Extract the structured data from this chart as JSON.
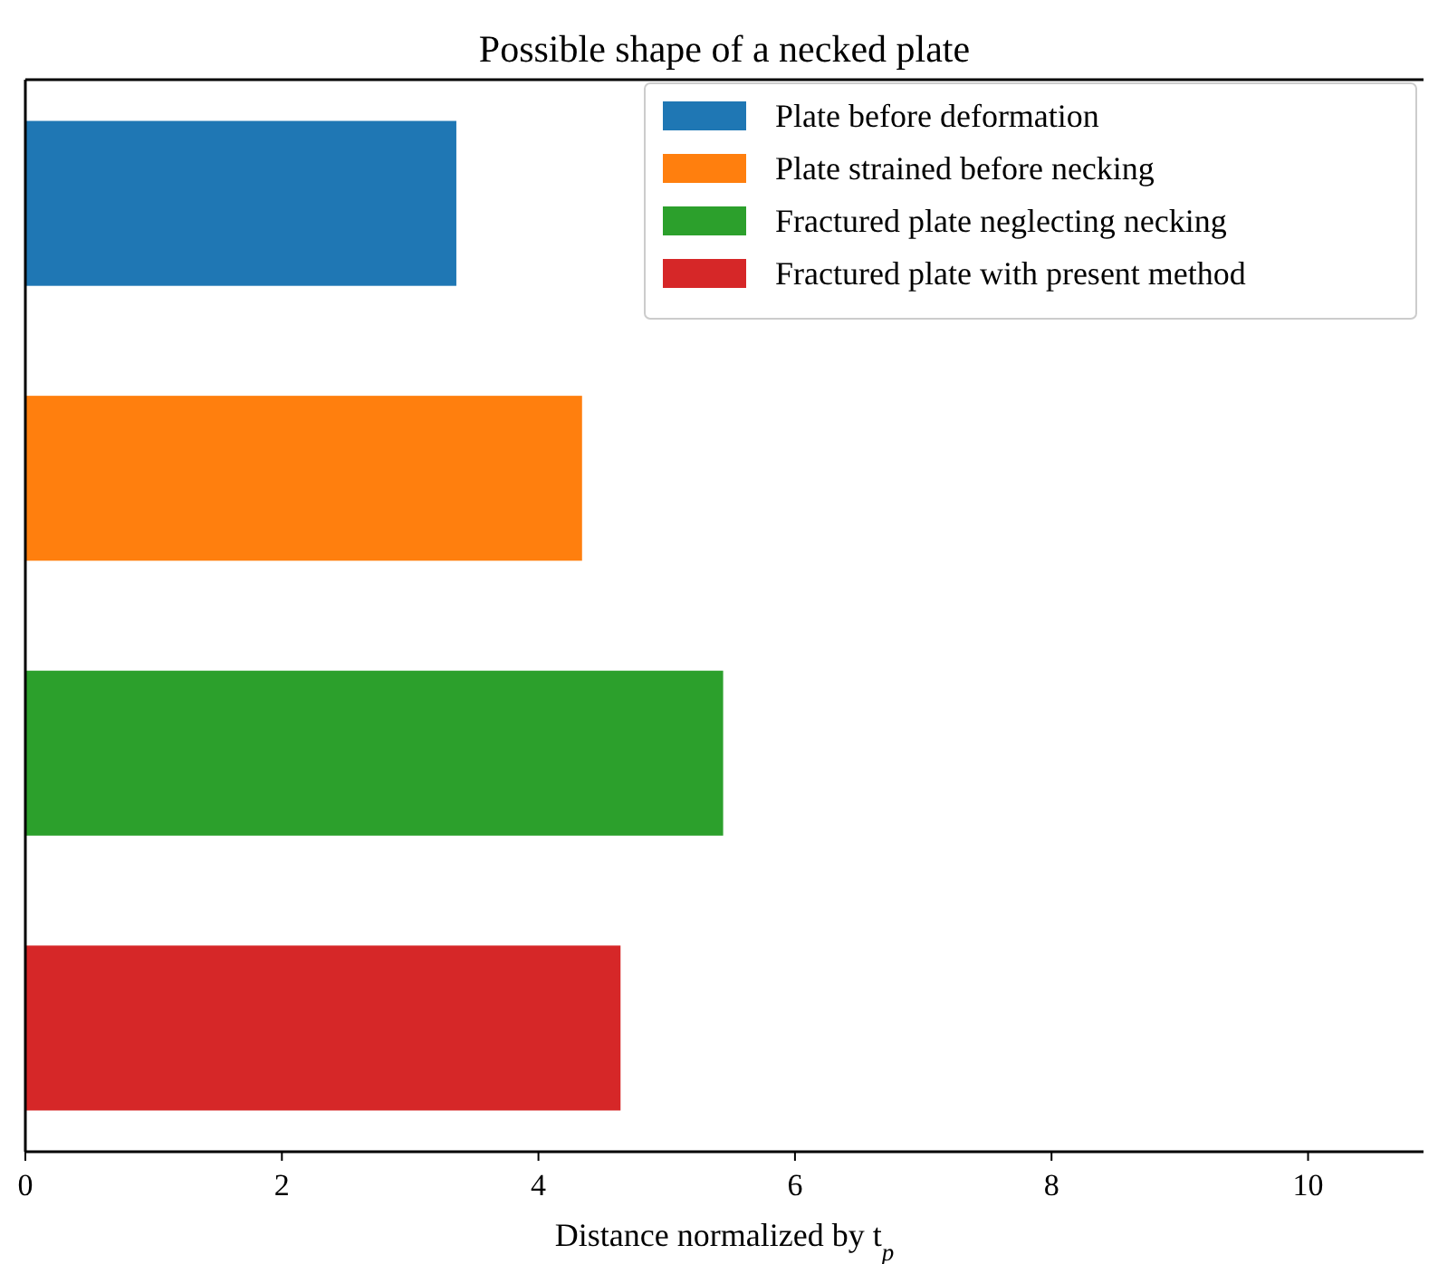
{
  "chart_data": {
    "type": "bar",
    "orientation": "horizontal",
    "title": "Possible shape of a necked plate",
    "xlabel": "Distance normalized by t$_{p}$",
    "categories": [
      null,
      null,
      null,
      null
    ],
    "xlim": [
      0,
      10.9
    ],
    "xticks": [
      0,
      2,
      4,
      6,
      8,
      10
    ],
    "legend": "top right",
    "grid": false,
    "series": [
      {
        "name": "Plate before deformation",
        "color": "#1f77b4",
        "values": [
          3.36,
          null,
          null,
          null
        ]
      },
      {
        "name": "Plate strained before necking",
        "color": "#ff7f0e",
        "values": [
          null,
          4.34,
          null,
          null
        ]
      },
      {
        "name": "Fractured plate neglecting necking",
        "color": "#2ca02c",
        "values": [
          null,
          null,
          5.44,
          null
        ]
      },
      {
        "name": "Fractured plate with present method",
        "color": "#d62728",
        "values": [
          null,
          null,
          null,
          4.64
        ]
      }
    ]
  }
}
